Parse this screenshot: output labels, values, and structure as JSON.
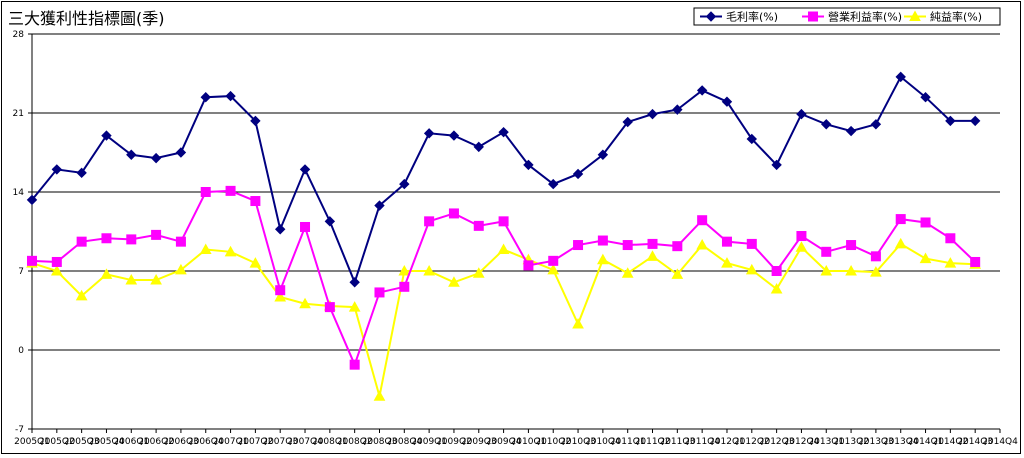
{
  "chart_data": {
    "type": "line",
    "title": "三大獲利性指標圖(季)",
    "xlabel": "",
    "ylabel": "",
    "ylim": [
      -7,
      28
    ],
    "yticks": [
      -7,
      0,
      7,
      14,
      21,
      28
    ],
    "grid": true,
    "legend_position": "top-right",
    "categories": [
      "2005Q1",
      "2005Q2",
      "2005Q3",
      "2005Q4",
      "2006Q1",
      "2006Q2",
      "2006Q3",
      "2006Q4",
      "2007Q1",
      "2007Q2",
      "2007Q3",
      "2007Q4",
      "2008Q1",
      "2008Q2",
      "2008Q3",
      "2008Q4",
      "2009Q1",
      "2009Q2",
      "2009Q3",
      "2009Q4",
      "2010Q1",
      "2010Q2",
      "2010Q3",
      "2010Q4",
      "2011Q1",
      "2011Q2",
      "2011Q3",
      "2011Q4",
      "2012Q1",
      "2012Q2",
      "2012Q3",
      "2012Q4",
      "2013Q1",
      "2013Q2",
      "2013Q3",
      "2013Q4",
      "2014Q1",
      "2014Q2",
      "2014Q3",
      "2014Q4"
    ],
    "series": [
      {
        "name": "毛利率(%)",
        "color": "#000080",
        "marker": "diamond",
        "values": [
          13.3,
          16.0,
          15.7,
          19.0,
          17.3,
          17.0,
          17.5,
          22.4,
          22.5,
          20.3,
          10.7,
          16.0,
          11.4,
          6.0,
          12.8,
          14.7,
          19.2,
          19.0,
          18.0,
          19.3,
          16.4,
          14.7,
          15.6,
          17.3,
          20.2,
          20.9,
          21.3,
          23.0,
          22.0,
          18.7,
          16.4,
          20.9,
          20.0,
          19.4,
          20.0,
          24.2,
          22.4,
          20.3,
          20.3,
          null
        ]
      },
      {
        "name": "營業利益率(%)",
        "color": "#FF00FF",
        "marker": "square",
        "values": [
          7.9,
          7.8,
          9.6,
          9.9,
          9.8,
          10.2,
          9.6,
          14.0,
          14.1,
          13.2,
          5.3,
          10.9,
          3.8,
          -1.3,
          5.1,
          5.6,
          11.4,
          12.1,
          11.0,
          11.4,
          7.5,
          7.9,
          9.3,
          9.7,
          9.3,
          9.4,
          9.2,
          11.5,
          9.6,
          9.4,
          7.0,
          10.1,
          8.7,
          9.3,
          8.3,
          11.6,
          11.3,
          9.9,
          7.8,
          null
        ]
      },
      {
        "name": "純益率(%)",
        "color": "#FFFF00",
        "marker": "triangle",
        "values": [
          7.7,
          7.0,
          4.8,
          6.7,
          6.2,
          6.2,
          7.1,
          8.9,
          8.7,
          7.7,
          4.7,
          4.1,
          3.9,
          3.8,
          -4.1,
          7.0,
          7.0,
          6.0,
          6.8,
          8.9,
          8.0,
          7.1,
          2.3,
          8.0,
          6.8,
          8.3,
          6.7,
          9.3,
          7.7,
          7.1,
          5.4,
          9.1,
          7.0,
          7.0,
          6.9,
          9.4,
          8.1,
          7.7,
          7.6,
          null
        ]
      }
    ]
  }
}
